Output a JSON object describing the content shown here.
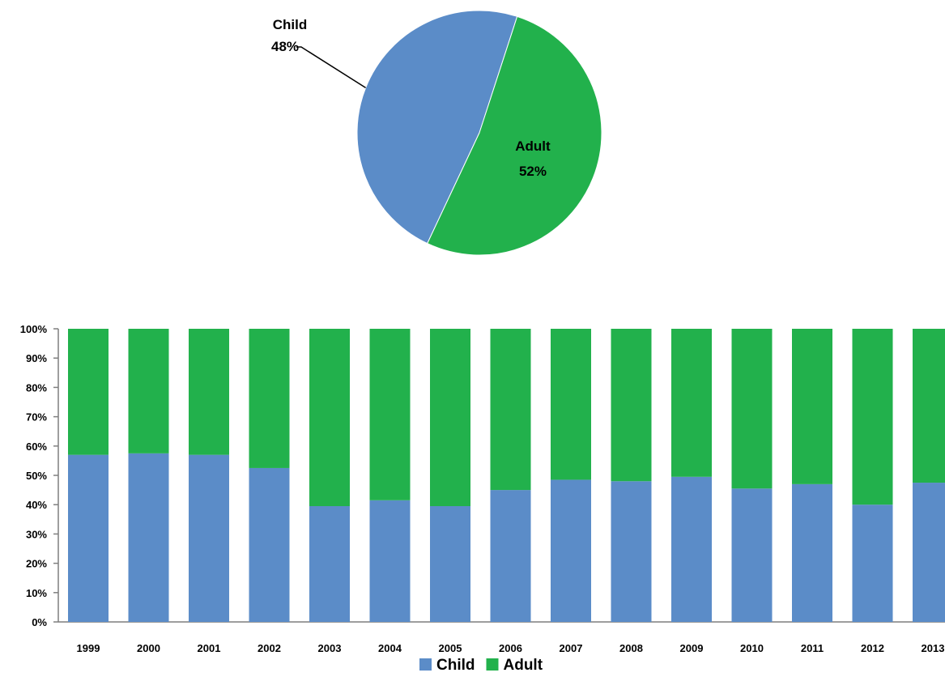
{
  "chart_data": [
    {
      "type": "pie",
      "slices": [
        {
          "label": "Child",
          "value": 48,
          "value_label": "48%",
          "color": "#5b8cc8"
        },
        {
          "label": "Adult",
          "value": 52,
          "value_label": "52%",
          "color": "#22b14c"
        }
      ]
    },
    {
      "type": "bar",
      "stacked": true,
      "normalized": "percent",
      "categories": [
        "1999",
        "2000",
        "2001",
        "2002",
        "2003",
        "2004",
        "2005",
        "2006",
        "2007",
        "2008",
        "2009",
        "2010",
        "2011",
        "2012",
        "2013"
      ],
      "series": [
        {
          "name": "Child",
          "color": "#5b8cc8",
          "values": [
            57,
            57.5,
            57,
            52.5,
            39.5,
            41.5,
            39.5,
            45,
            48.5,
            48,
            49.5,
            45.5,
            47,
            40,
            47.5
          ]
        },
        {
          "name": "Adult",
          "color": "#22b14c",
          "values": [
            43,
            42.5,
            43,
            47.5,
            60.5,
            58.5,
            60.5,
            55,
            51.5,
            52,
            50.5,
            54.5,
            53,
            60,
            52.5
          ]
        }
      ],
      "ylim": [
        0,
        100
      ],
      "yticks": [
        "0%",
        "10%",
        "20%",
        "30%",
        "40%",
        "50%",
        "60%",
        "70%",
        "80%",
        "90%",
        "100%"
      ],
      "grid": false,
      "legend_position": "bottom"
    }
  ]
}
